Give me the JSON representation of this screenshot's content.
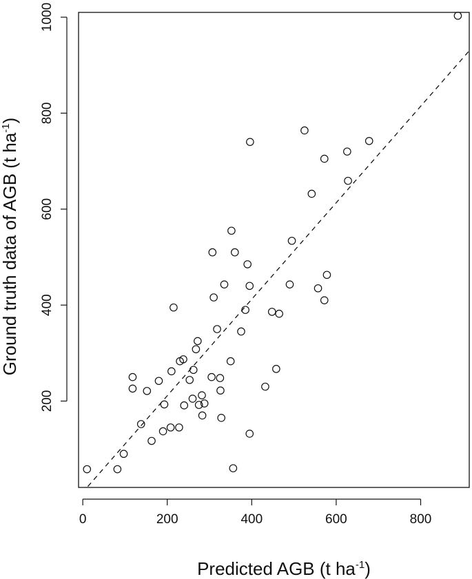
{
  "chart_data": {
    "type": "scatter",
    "title": "",
    "xlabel": "Predicted AGB (t ha",
    "xlabel_sup": "-1",
    "xlabel_end": ")",
    "ylabel": "Ground truth data of AGB  (t ha",
    "ylabel_sup": "-1",
    "ylabel_end": ")",
    "xlim": [
      -10,
      915
    ],
    "ylim": [
      20,
      1010
    ],
    "xticks": [
      0,
      200,
      400,
      600,
      800
    ],
    "yticks": [
      200,
      400,
      600,
      800,
      1000
    ],
    "grid": false,
    "legend": "none",
    "points": [
      {
        "x": 10,
        "y": 58
      },
      {
        "x": 82,
        "y": 58
      },
      {
        "x": 97,
        "y": 90
      },
      {
        "x": 118,
        "y": 250
      },
      {
        "x": 118,
        "y": 226
      },
      {
        "x": 138,
        "y": 152
      },
      {
        "x": 152,
        "y": 221
      },
      {
        "x": 163,
        "y": 117
      },
      {
        "x": 180,
        "y": 242
      },
      {
        "x": 190,
        "y": 137
      },
      {
        "x": 193,
        "y": 193
      },
      {
        "x": 208,
        "y": 145
      },
      {
        "x": 210,
        "y": 262
      },
      {
        "x": 215,
        "y": 395
      },
      {
        "x": 228,
        "y": 145
      },
      {
        "x": 230,
        "y": 283
      },
      {
        "x": 238,
        "y": 287
      },
      {
        "x": 240,
        "y": 191
      },
      {
        "x": 253,
        "y": 244
      },
      {
        "x": 260,
        "y": 205
      },
      {
        "x": 262,
        "y": 265
      },
      {
        "x": 268,
        "y": 308
      },
      {
        "x": 272,
        "y": 325
      },
      {
        "x": 275,
        "y": 192
      },
      {
        "x": 282,
        "y": 212
      },
      {
        "x": 283,
        "y": 170
      },
      {
        "x": 288,
        "y": 195
      },
      {
        "x": 305,
        "y": 250
      },
      {
        "x": 307,
        "y": 510
      },
      {
        "x": 310,
        "y": 416
      },
      {
        "x": 318,
        "y": 350
      },
      {
        "x": 325,
        "y": 248
      },
      {
        "x": 326,
        "y": 222
      },
      {
        "x": 328,
        "y": 165
      },
      {
        "x": 335,
        "y": 443
      },
      {
        "x": 350,
        "y": 283
      },
      {
        "x": 352,
        "y": 555
      },
      {
        "x": 356,
        "y": 60
      },
      {
        "x": 360,
        "y": 510
      },
      {
        "x": 375,
        "y": 345
      },
      {
        "x": 385,
        "y": 390
      },
      {
        "x": 390,
        "y": 485
      },
      {
        "x": 395,
        "y": 440
      },
      {
        "x": 395,
        "y": 132
      },
      {
        "x": 396,
        "y": 740
      },
      {
        "x": 432,
        "y": 230
      },
      {
        "x": 448,
        "y": 386
      },
      {
        "x": 458,
        "y": 267
      },
      {
        "x": 465,
        "y": 382
      },
      {
        "x": 490,
        "y": 443
      },
      {
        "x": 495,
        "y": 534
      },
      {
        "x": 525,
        "y": 764
      },
      {
        "x": 542,
        "y": 632
      },
      {
        "x": 557,
        "y": 435
      },
      {
        "x": 572,
        "y": 410
      },
      {
        "x": 572,
        "y": 705
      },
      {
        "x": 578,
        "y": 463
      },
      {
        "x": 626,
        "y": 720
      },
      {
        "x": 628,
        "y": 659
      },
      {
        "x": 678,
        "y": 742
      },
      {
        "x": 888,
        "y": 1003
      }
    ],
    "fit_line": {
      "style": "dashed",
      "x1": 12,
      "y1": 22,
      "x2": 915,
      "y2": 930
    }
  }
}
